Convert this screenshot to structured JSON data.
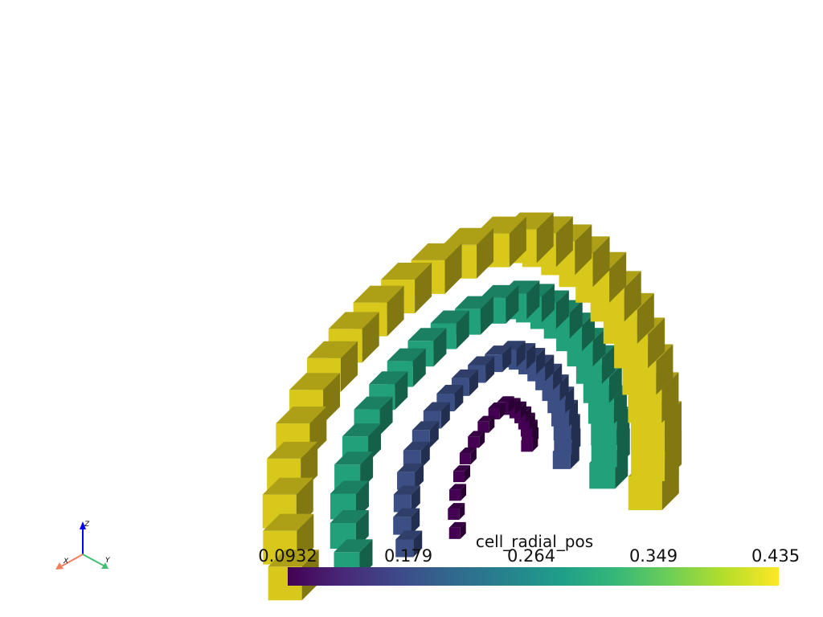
{
  "scene": {
    "colorbar": {
      "title": "cell_radial_pos",
      "colormap": "viridis",
      "range": [
        0.0932,
        0.435
      ],
      "tick_labels": [
        "0.0932",
        "0.179",
        "0.264",
        "0.349",
        "0.435"
      ]
    },
    "orientation_axes": {
      "x_label": "X",
      "y_label": "Y",
      "z_label": "Z",
      "x_color": "#f08060",
      "y_color": "#40c070",
      "z_color": "#0000ff"
    },
    "ring_colors": [
      "#440154",
      "#3b4f85",
      "#22a07a",
      "#d8c81c"
    ]
  }
}
